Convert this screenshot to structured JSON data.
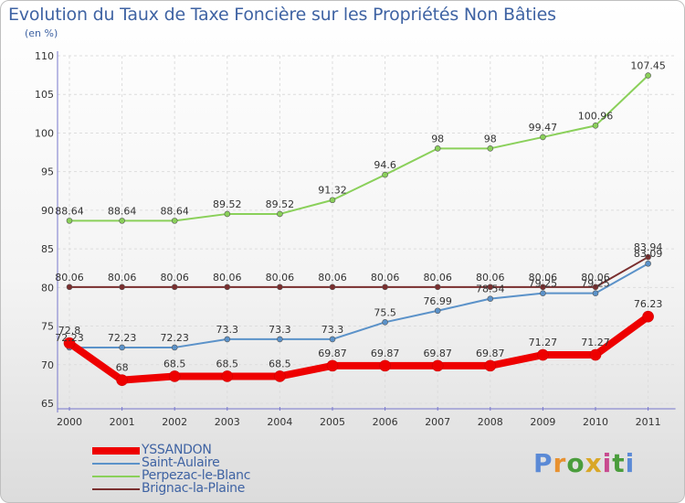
{
  "title": "Evolution du Taux de Taxe Foncière sur les Propriétés Non Bâties",
  "unit_label": "(en %)",
  "logo": {
    "text": "Proxiti",
    "letters": [
      "P",
      "r",
      "o",
      "x",
      "i",
      "t",
      "i"
    ],
    "colors": [
      "#5b8ad6",
      "#e8912f",
      "#4a9d3c",
      "#d9a726",
      "#c84a8f",
      "#4a9d3c",
      "#5b8ad6"
    ]
  },
  "chart_data": {
    "type": "line",
    "title": "Evolution du Taux de Taxe Foncière sur les Propriétés Non Bâties",
    "ylabel": "(en %)",
    "xlabel": "",
    "categories": [
      "2000",
      "2001",
      "2002",
      "2003",
      "2004",
      "2005",
      "2006",
      "2007",
      "2008",
      "2009",
      "2010",
      "2011"
    ],
    "ylim": [
      65,
      110
    ],
    "yticks": [
      65,
      70,
      75,
      80,
      85,
      90,
      95,
      100,
      105,
      110
    ],
    "grid": true,
    "series": [
      {
        "name": "Perpezac-le-Blanc",
        "color": "#8ad05a",
        "width": 2,
        "values": [
          88.64,
          88.64,
          88.64,
          89.52,
          89.52,
          91.32,
          94.6,
          98,
          98,
          99.47,
          100.96,
          107.45
        ],
        "labels": [
          "88.64",
          "88.64",
          "88.64",
          "89.52",
          "89.52",
          "91.32",
          "94.6",
          "98",
          "98",
          "99.47",
          "100.96",
          "107.45"
        ]
      },
      {
        "name": "Brignac-la-Plaine",
        "color": "#7a2f2f",
        "width": 2,
        "values": [
          80.06,
          80.06,
          80.06,
          80.06,
          80.06,
          80.06,
          80.06,
          80.06,
          80.06,
          80.06,
          80.06,
          83.94
        ],
        "labels": [
          "80.06",
          "80.06",
          "80.06",
          "80.06",
          "80.06",
          "80.06",
          "80.06",
          "80.06",
          "80.06",
          "80.06",
          "80.06",
          "83.94"
        ]
      },
      {
        "name": "Saint-Aulaire",
        "color": "#5b92c9",
        "width": 2,
        "values": [
          72.23,
          72.23,
          72.23,
          73.3,
          73.3,
          73.3,
          75.5,
          76.99,
          78.54,
          79.25,
          79.25,
          83.09
        ],
        "labels": [
          "72.23",
          "72.23",
          "72.23",
          "73.3",
          "73.3",
          "73.3",
          "75.5",
          "76.99",
          "78.54",
          "79.25",
          "79.25",
          "83.09"
        ]
      },
      {
        "name": "YSSANDON",
        "color": "#ee0000",
        "width": 8,
        "values": [
          72.8,
          68,
          68.5,
          68.5,
          68.5,
          69.87,
          69.87,
          69.87,
          69.87,
          71.27,
          71.27,
          76.23
        ],
        "labels": [
          "72.8",
          "68",
          "68.5",
          "68.5",
          "68.5",
          "69.87",
          "69.87",
          "69.87",
          "69.87",
          "71.27",
          "71.27",
          "76.23"
        ]
      }
    ],
    "legend": {
      "position": "bottom-left",
      "order": [
        "YSSANDON",
        "Saint-Aulaire",
        "Perpezac-le-Blanc",
        "Brignac-la-Plaine"
      ]
    }
  }
}
